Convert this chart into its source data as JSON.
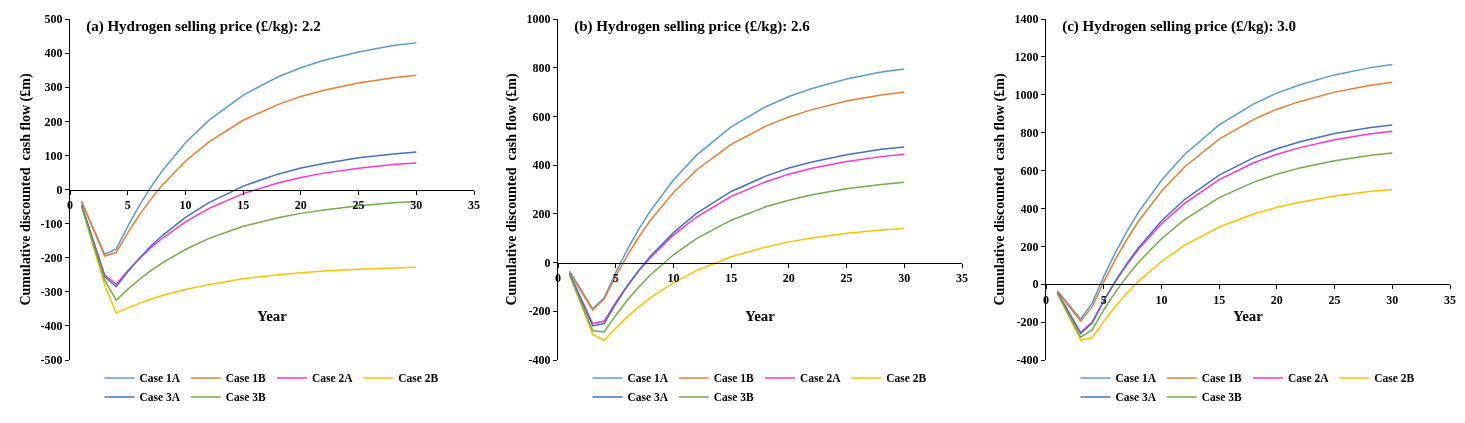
{
  "chart_data": [
    {
      "type": "line",
      "title": "(a) Hydrogen selling price (£/kg): 2.2",
      "xlabel": "Year",
      "ylabel": "Cumulative discounted  cash flow (£m)",
      "x": [
        1,
        2,
        3,
        4,
        5,
        6,
        7,
        8,
        10,
        12,
        15,
        18,
        20,
        22,
        25,
        28,
        30
      ],
      "xlim": [
        0,
        35
      ],
      "xticks": [
        0,
        5,
        10,
        15,
        20,
        25,
        30,
        35
      ],
      "ylim": [
        -500,
        500
      ],
      "yticks": [
        -500,
        -400,
        -300,
        -200,
        -100,
        0,
        100,
        200,
        300,
        400,
        500
      ],
      "grid": false,
      "legend": "bottom",
      "marker": "none",
      "line_style": "solid",
      "series": [
        {
          "name": "Case 1A",
          "color": "#5b9bd5",
          "values": [
            -35,
            -112,
            -190,
            -175,
            -108,
            -47,
            7,
            55,
            137,
            202,
            277,
            330,
            357,
            379,
            403,
            422,
            430
          ]
        },
        {
          "name": "Case 1B",
          "color": "#ed7d31",
          "values": [
            -35,
            -115,
            -195,
            -185,
            -127,
            -75,
            -29,
            13,
            83,
            139,
            203,
            249,
            273,
            291,
            312,
            328,
            335
          ]
        },
        {
          "name": "Case 2A",
          "color": "#ff33cc",
          "values": [
            -45,
            -148,
            -250,
            -278,
            -238,
            -203,
            -171,
            -143,
            -95,
            -56,
            -12,
            19,
            35,
            48,
            62,
            73,
            78
          ]
        },
        {
          "name": "Case 2B",
          "color": "#ffc000",
          "values": [
            -50,
            -165,
            -280,
            -362,
            -347,
            -334,
            -322,
            -311,
            -293,
            -279,
            -262,
            -250,
            -244,
            -239,
            -234,
            -230,
            -228
          ]
        },
        {
          "name": "Case 3A",
          "color": "#4472c4",
          "values": [
            -45,
            -150,
            -255,
            -285,
            -241,
            -202,
            -166,
            -135,
            -82,
            -39,
            10,
            45,
            63,
            76,
            93,
            104,
            110
          ]
        },
        {
          "name": "Case 3B",
          "color": "#70ad47",
          "values": [
            -50,
            -158,
            -265,
            -325,
            -293,
            -264,
            -238,
            -215,
            -176,
            -144,
            -108,
            -83,
            -70,
            -60,
            -48,
            -39,
            -35
          ]
        }
      ]
    },
    {
      "type": "line",
      "title": "(b) Hydrogen selling price (£/kg): 2.6",
      "xlabel": "Year",
      "ylabel": "Cumulative discounted  cash flow (£m)",
      "x": [
        1,
        2,
        3,
        4,
        5,
        6,
        7,
        8,
        10,
        12,
        15,
        18,
        20,
        22,
        25,
        28,
        30
      ],
      "xlim": [
        0,
        35
      ],
      "xticks": [
        0,
        5,
        10,
        15,
        20,
        25,
        30,
        35
      ],
      "ylim": [
        -400,
        1000
      ],
      "yticks": [
        -400,
        -200,
        0,
        200,
        400,
        600,
        800,
        1000
      ],
      "grid": false,
      "legend": "bottom",
      "marker": "none",
      "line_style": "solid",
      "series": [
        {
          "name": "Case 1A",
          "color": "#5b9bd5",
          "values": [
            -35,
            -112,
            -190,
            -145,
            -41,
            53,
            137,
            212,
            339,
            441,
            557,
            640,
            682,
            715,
            754,
            782,
            795
          ]
        },
        {
          "name": "Case 1B",
          "color": "#ed7d31",
          "values": [
            -40,
            -118,
            -195,
            -150,
            -56,
            29,
            105,
            173,
            288,
            380,
            485,
            560,
            598,
            628,
            663,
            688,
            700
          ]
        },
        {
          "name": "Case 2A",
          "color": "#ff33cc",
          "values": [
            -45,
            -148,
            -250,
            -240,
            -164,
            -95,
            -34,
            20,
            113,
            187,
            272,
            332,
            363,
            387,
            415,
            435,
            445
          ]
        },
        {
          "name": "Case 2B",
          "color": "#ffc000",
          "values": [
            -50,
            -172,
            -295,
            -320,
            -269,
            -223,
            -182,
            -145,
            -83,
            -33,
            24,
            64,
            85,
            101,
            120,
            134,
            140
          ]
        },
        {
          "name": "Case 3A",
          "color": "#4472c4",
          "values": [
            -45,
            -152,
            -260,
            -250,
            -170,
            -97,
            -32,
            26,
            123,
            202,
            292,
            355,
            388,
            413,
            443,
            465,
            475
          ]
        },
        {
          "name": "Case 3B",
          "color": "#70ad47",
          "values": [
            -50,
            -165,
            -280,
            -285,
            -217,
            -155,
            -100,
            -51,
            32,
            98,
            174,
            229,
            256,
            278,
            303,
            321,
            330
          ]
        }
      ]
    },
    {
      "type": "line",
      "title": "(c) Hydrogen selling price (£/kg): 3.0",
      "xlabel": "Year",
      "ylabel": "Cumulative discounted  cash flow (£m)",
      "x": [
        1,
        2,
        3,
        4,
        5,
        6,
        7,
        8,
        10,
        12,
        15,
        18,
        20,
        22,
        25,
        28,
        30
      ],
      "xlim": [
        0,
        35
      ],
      "xticks": [
        0,
        5,
        10,
        15,
        20,
        25,
        30,
        35
      ],
      "ylim": [
        -400,
        1400
      ],
      "yticks": [
        -400,
        -200,
        0,
        200,
        400,
        600,
        800,
        1000,
        1200,
        1400
      ],
      "grid": false,
      "legend": "bottom",
      "marker": "none",
      "line_style": "solid",
      "series": [
        {
          "name": "Case 1A",
          "color": "#5b9bd5",
          "values": [
            -35,
            -110,
            -185,
            -100,
            40,
            166,
            278,
            379,
            549,
            685,
            841,
            952,
            1009,
            1053,
            1105,
            1142,
            1160
          ]
        },
        {
          "name": "Case 1B",
          "color": "#ed7d31",
          "values": [
            -40,
            -118,
            -195,
            -120,
            12,
            130,
            236,
            331,
            491,
            619,
            766,
            870,
            924,
            965,
            1014,
            1049,
            1066
          ]
        },
        {
          "name": "Case 2A",
          "color": "#ff33cc",
          "values": [
            -45,
            -150,
            -255,
            -200,
            -88,
            12,
            102,
            183,
            319,
            427,
            552,
            641,
            686,
            721,
            763,
            793,
            807
          ]
        },
        {
          "name": "Case 2B",
          "color": "#ffc000",
          "values": [
            -50,
            -172,
            -295,
            -283,
            -196,
            -118,
            -48,
            15,
            120,
            205,
            302,
            371,
            406,
            433,
            466,
            489,
            500
          ]
        },
        {
          "name": "Case 3A",
          "color": "#4472c4",
          "values": [
            -45,
            -152,
            -260,
            -205,
            -89,
            16,
            109,
            192,
            334,
            447,
            576,
            668,
            715,
            752,
            795,
            826,
            841
          ]
        },
        {
          "name": "Case 3B",
          "color": "#70ad47",
          "values": [
            -50,
            -165,
            -280,
            -240,
            -136,
            -43,
            40,
            115,
            240,
            341,
            457,
            539,
            581,
            614,
            652,
            680,
            693
          ]
        }
      ]
    }
  ]
}
